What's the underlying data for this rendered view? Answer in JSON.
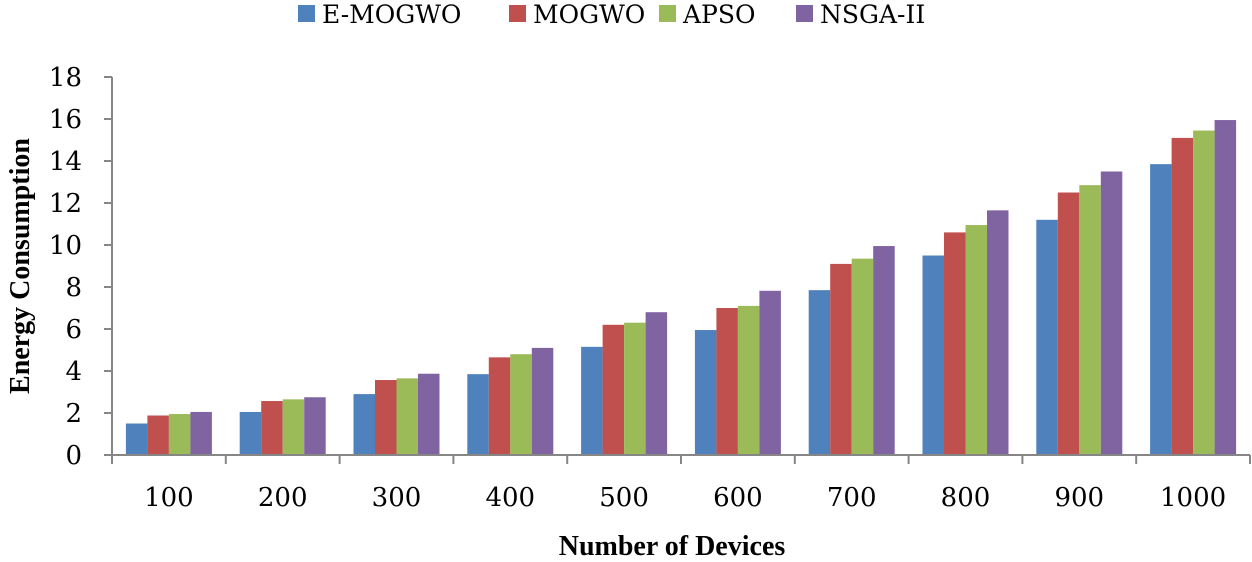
{
  "chart_data": {
    "type": "bar",
    "title": "",
    "xlabel": "Number of Devices",
    "ylabel": "Energy Consumption",
    "ylim": [
      0,
      18
    ],
    "yticks": [
      0,
      2,
      4,
      6,
      8,
      10,
      12,
      14,
      16,
      18
    ],
    "ytick_labels": [
      "0",
      "2",
      "4",
      "6",
      "8",
      "10",
      "12",
      "14",
      "16",
      "18"
    ],
    "categories": [
      "100",
      "200",
      "300",
      "400",
      "500",
      "600",
      "700",
      "800",
      "900",
      "1000"
    ],
    "legend_position": "top-center",
    "grid": false,
    "series": [
      {
        "name": "E-MOGWO",
        "color": "#4F81BD",
        "values": [
          1.5,
          2.05,
          2.9,
          3.85,
          5.15,
          5.95,
          7.85,
          9.5,
          11.2,
          13.85
        ]
      },
      {
        "name": "MOGWO",
        "color": "#C0504D",
        "values": [
          1.88,
          2.57,
          3.57,
          4.65,
          6.2,
          7.0,
          9.1,
          10.6,
          12.5,
          15.1
        ]
      },
      {
        "name": "APSO",
        "color": "#9BBB59",
        "values": [
          1.95,
          2.65,
          3.65,
          4.8,
          6.3,
          7.1,
          9.35,
          10.95,
          12.85,
          15.45
        ]
      },
      {
        "name": "NSGA-II",
        "color": "#8064A2",
        "values": [
          2.05,
          2.75,
          3.87,
          5.1,
          6.8,
          7.82,
          9.95,
          11.65,
          13.5,
          15.95
        ]
      }
    ]
  }
}
